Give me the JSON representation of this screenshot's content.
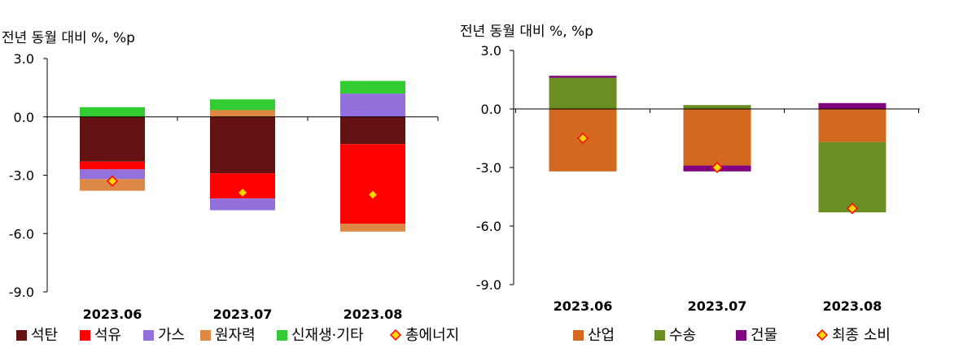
{
  "chart_data": [
    {
      "type": "bar",
      "stacked": true,
      "ylabel": "전년 동월 대비 %, %p",
      "ylim": [
        -9.0,
        3.0
      ],
      "ytick_values": [
        3,
        0,
        -3,
        -6,
        -9
      ],
      "yticks": [
        "3.0",
        "0.0",
        "-3.0",
        "-6.0",
        "-9.0"
      ],
      "categories": [
        "2023.06",
        "2023.07",
        "2023.08"
      ],
      "series": [
        {
          "name": "석탄",
          "color": "#631111",
          "values": [
            -2.3,
            -2.9,
            -1.4
          ]
        },
        {
          "name": "석유",
          "color": "#ff0000",
          "values": [
            -0.4,
            -1.3,
            -4.1
          ]
        },
        {
          "name": "가스",
          "color": "#9370db",
          "values": [
            -0.5,
            -0.6,
            1.2
          ]
        },
        {
          "name": "원자력",
          "color": "#dd8844",
          "values": [
            -0.6,
            0.35,
            -0.4
          ]
        },
        {
          "name": "신재생·기타",
          "color": "#33cc33",
          "values": [
            0.5,
            0.55,
            0.65
          ]
        }
      ],
      "total": {
        "name": "총에너지",
        "values": [
          -3.3,
          -3.9,
          -4.0
        ]
      }
    },
    {
      "type": "bar",
      "stacked": true,
      "ylabel": "전년 동월 대비 %, %p",
      "ylim": [
        -9.0,
        3.0
      ],
      "ytick_values": [
        3,
        0,
        -3,
        -6,
        -9
      ],
      "yticks": [
        "3.0",
        "0.0",
        "-3.0",
        "-6.0",
        "-9.0"
      ],
      "categories": [
        "2023.06",
        "2023.07",
        "2023.08"
      ],
      "series": [
        {
          "name": "산업",
          "color": "#d2691e",
          "values": [
            -3.2,
            -2.9,
            -1.7
          ]
        },
        {
          "name": "수송",
          "color": "#6b8e23",
          "values": [
            1.6,
            0.2,
            -3.6
          ]
        },
        {
          "name": "건물",
          "color": "#800080",
          "values": [
            0.1,
            -0.3,
            0.3
          ]
        }
      ],
      "total": {
        "name": "최종 소비",
        "values": [
          -1.5,
          -3.0,
          -5.1
        ]
      }
    }
  ]
}
